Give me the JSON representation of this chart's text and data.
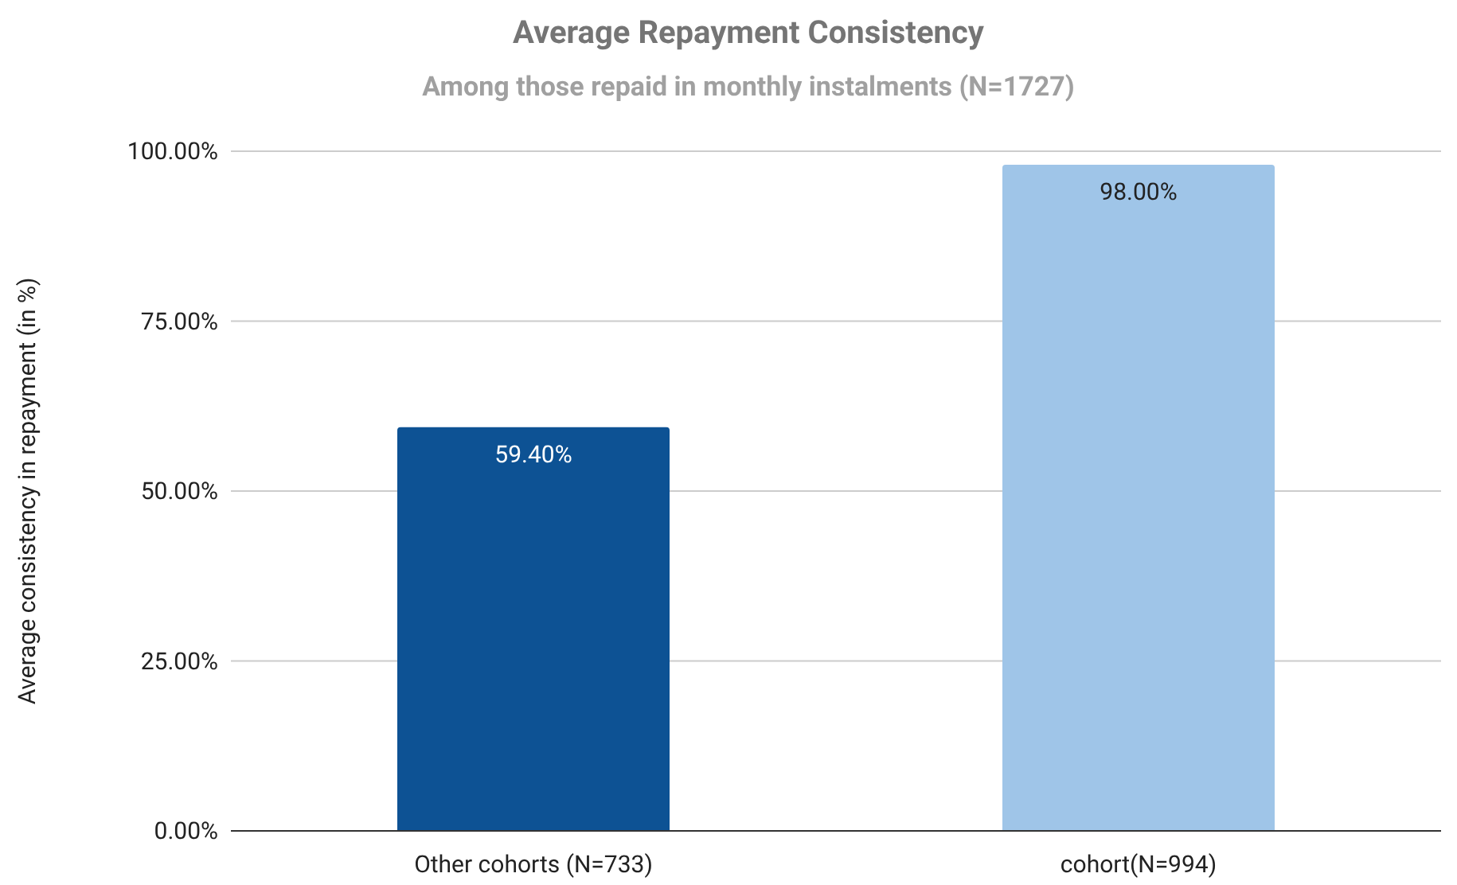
{
  "chart_data": {
    "type": "bar",
    "title": "Average Repayment Consistency",
    "subtitle": "Among those repaid in monthly instalments (N=1727)",
    "ylabel": "Average consistency in repayment (in %)",
    "categories": [
      "Other cohorts (N=733)",
      "cohort(N=994)"
    ],
    "values": [
      59.4,
      98
    ],
    "colors": [
      "#0d5294",
      "#9fc5e8"
    ],
    "value_labels": [
      "59.40%",
      "98.00%"
    ],
    "ylim": [
      0,
      100
    ],
    "yticks": [
      {
        "value": 0,
        "label": "0.00%"
      },
      {
        "value": 25,
        "label": "25.00%"
      },
      {
        "value": 50,
        "label": "50.00%"
      },
      {
        "value": 75,
        "label": "75.00%"
      },
      {
        "value": 100,
        "label": "100.00%"
      }
    ],
    "grid": "y"
  }
}
